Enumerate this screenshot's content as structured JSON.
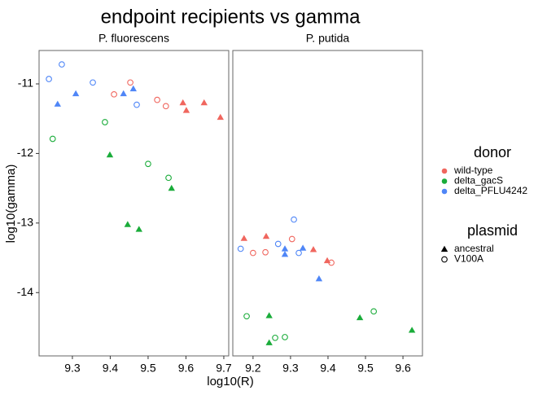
{
  "chart_data": {
    "type": "scatter",
    "title": "endpoint recipients vs gamma",
    "x_label": "log10(R)",
    "y_label": "log10(gamma)",
    "ylim": [
      -14.91,
      -10.52
    ],
    "yticks": [
      -11,
      -12,
      -13,
      -14
    ],
    "donor_legend": {
      "title": "donor",
      "items": [
        {
          "name": "wild-type",
          "color": "#f0665e"
        },
        {
          "name": "delta_gacS",
          "color": "#1aac3a"
        },
        {
          "name": "delta_PFLU4242",
          "color": "#4f86f7"
        }
      ]
    },
    "plasmid_legend": {
      "title": "plasmid",
      "items": [
        {
          "name": "ancestral",
          "marker": "triangle"
        },
        {
          "name": "V100A",
          "marker": "open-circle"
        }
      ]
    },
    "panels": [
      {
        "title": "P. fluorescens",
        "xlim": [
          9.212,
          9.713
        ],
        "xticks": [
          9.3,
          9.4,
          9.5,
          9.6,
          9.7
        ],
        "series": [
          {
            "donor": "wild-type",
            "plasmid": "V100A",
            "x": [
              9.41,
              9.453,
              9.524,
              9.547
            ],
            "values": [
              -11.15,
              -10.98,
              -11.23,
              -11.32
            ]
          },
          {
            "donor": "wild-type",
            "plasmid": "ancestral",
            "x": [
              9.592,
              9.601,
              9.648,
              9.691
            ],
            "values": [
              -11.27,
              -11.38,
              -11.27,
              -11.48
            ]
          },
          {
            "donor": "delta_PFLU4242",
            "plasmid": "V100A",
            "x": [
              9.238,
              9.272,
              9.354,
              9.47
            ],
            "values": [
              -10.93,
              -10.72,
              -10.98,
              -11.3
            ]
          },
          {
            "donor": "delta_PFLU4242",
            "plasmid": "ancestral",
            "x": [
              9.261,
              9.309,
              9.435,
              9.461
            ],
            "values": [
              -11.29,
              -11.14,
              -11.14,
              -11.07
            ]
          },
          {
            "donor": "delta_gacS",
            "plasmid": "V100A",
            "x": [
              9.248,
              9.386,
              9.5,
              9.554
            ],
            "values": [
              -11.79,
              -11.55,
              -12.15,
              -12.35
            ]
          },
          {
            "donor": "delta_gacS",
            "plasmid": "ancestral",
            "x": [
              9.399,
              9.562,
              9.446,
              9.476
            ],
            "values": [
              -12.02,
              -12.5,
              -13.02,
              -13.09
            ]
          }
        ]
      },
      {
        "title": "P. putida",
        "xlim": [
          9.146,
          9.652
        ],
        "xticks": [
          9.2,
          9.3,
          9.4,
          9.5,
          9.6
        ],
        "series": [
          {
            "donor": "wild-type",
            "plasmid": "V100A",
            "x": [
              9.2,
              9.233,
              9.304,
              9.409
            ],
            "values": [
              -13.43,
              -13.42,
              -13.23,
              -13.57
            ]
          },
          {
            "donor": "wild-type",
            "plasmid": "ancestral",
            "x": [
              9.176,
              9.235,
              9.361,
              9.398
            ],
            "values": [
              -13.22,
              -13.19,
              -13.38,
              -13.54
            ]
          },
          {
            "donor": "delta_PFLU4242",
            "plasmid": "V100A",
            "x": [
              9.167,
              9.267,
              9.309,
              9.322
            ],
            "values": [
              -13.37,
              -13.3,
              -12.95,
              -13.43
            ]
          },
          {
            "donor": "delta_PFLU4242",
            "plasmid": "ancestral",
            "x": [
              9.285,
              9.285,
              9.333,
              9.376
            ],
            "values": [
              -13.37,
              -13.45,
              -13.36,
              -13.8
            ]
          },
          {
            "donor": "delta_gacS",
            "plasmid": "V100A",
            "x": [
              9.183,
              9.259,
              9.285,
              9.522
            ],
            "values": [
              -14.34,
              -14.65,
              -14.64,
              -14.27
            ]
          },
          {
            "donor": "delta_gacS",
            "plasmid": "ancestral",
            "x": [
              9.243,
              9.243,
              9.485,
              9.624
            ],
            "values": [
              -14.33,
              -14.72,
              -14.36,
              -14.54
            ]
          }
        ]
      }
    ]
  }
}
